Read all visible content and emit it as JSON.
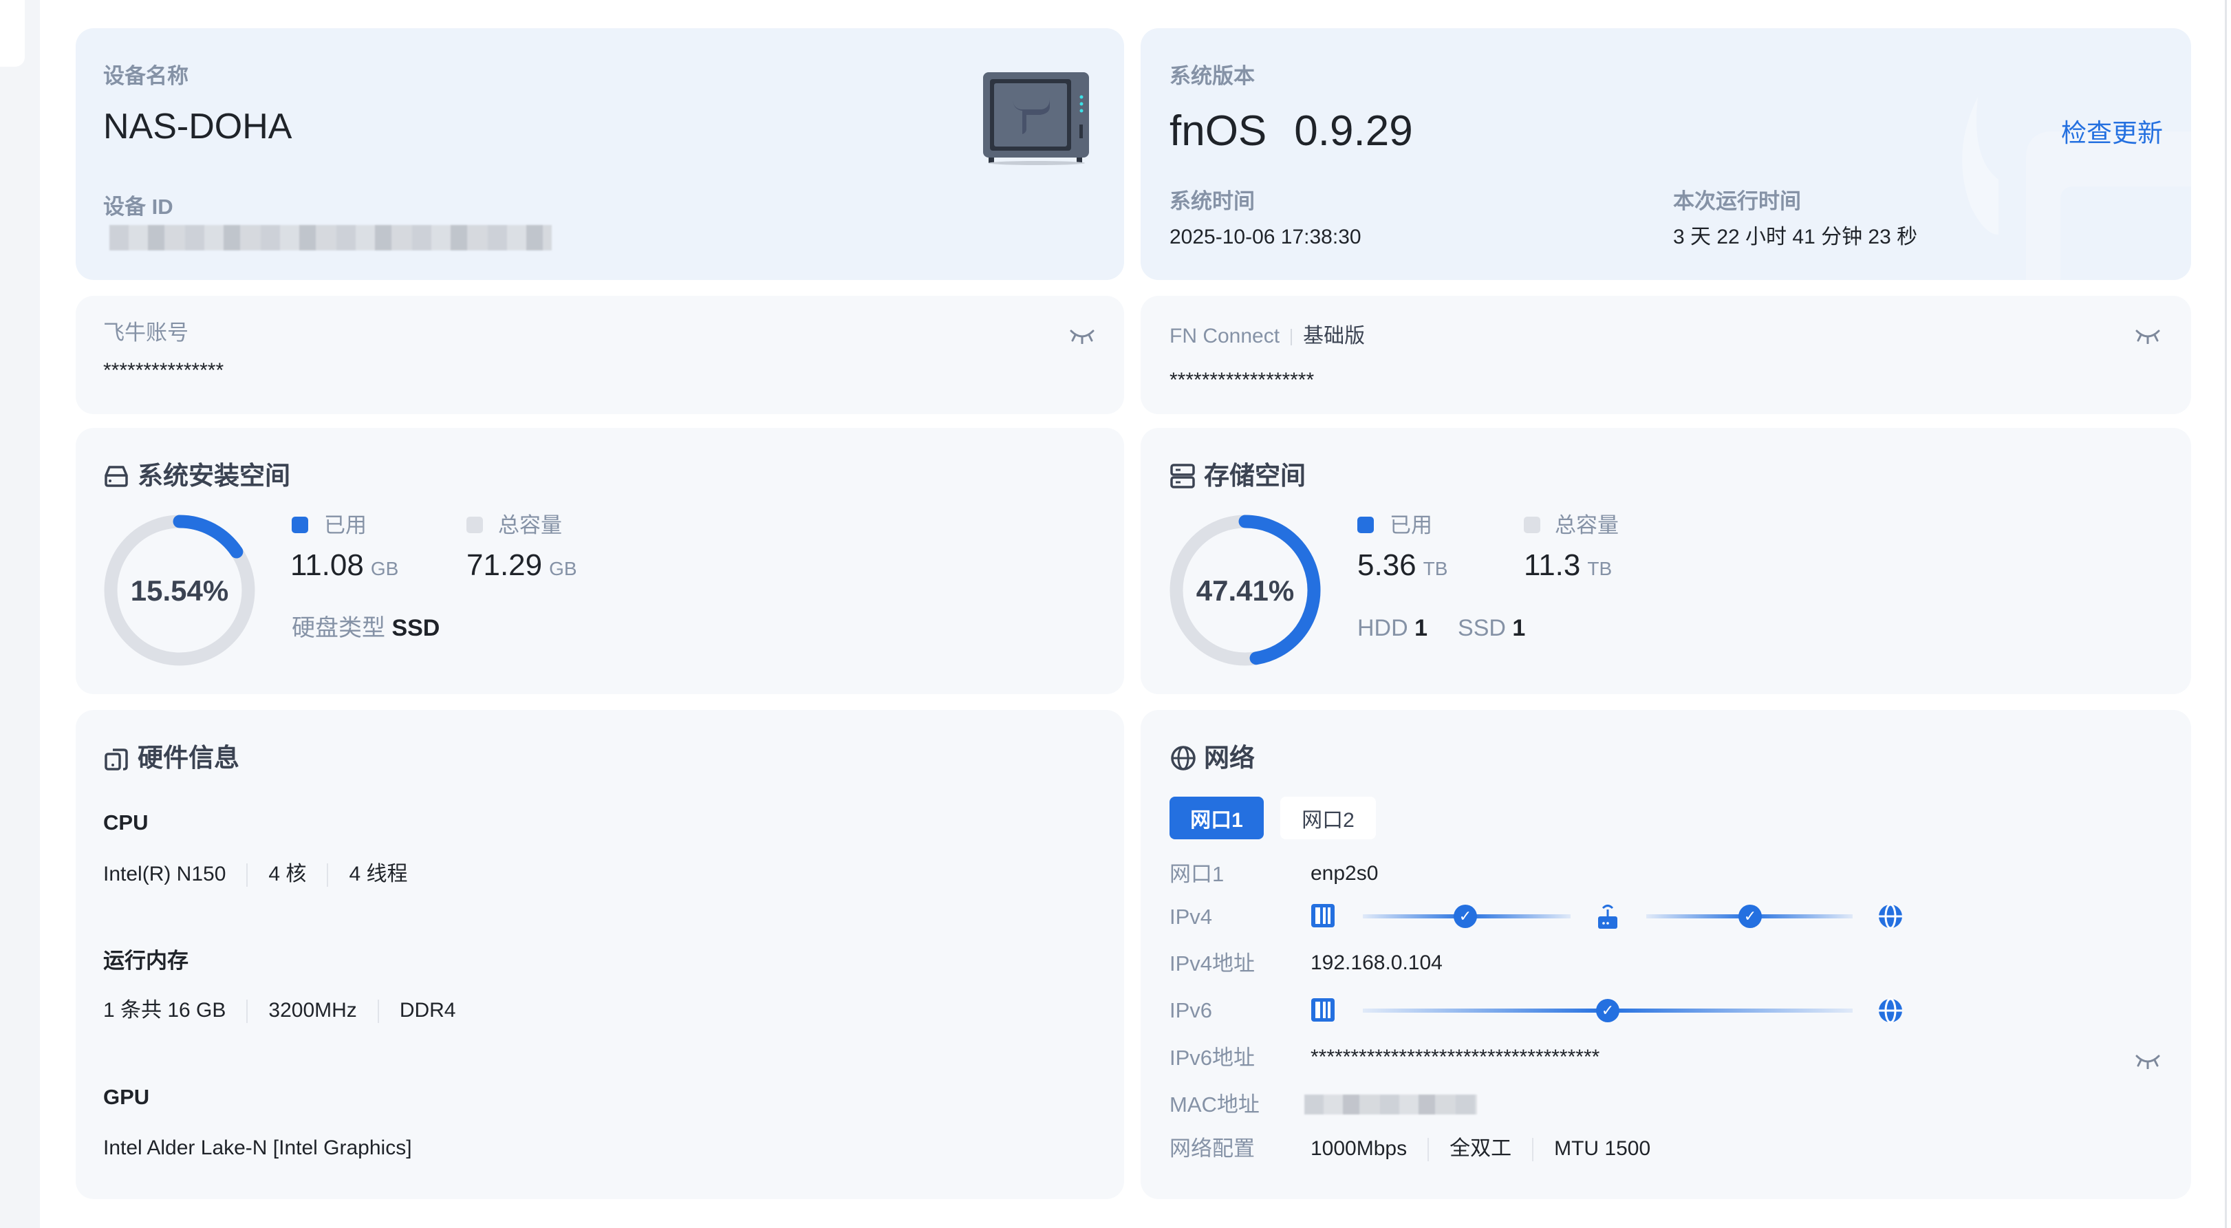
{
  "device": {
    "name_label": "设备名称",
    "name": "NAS-DOHA",
    "id_label": "设备 ID"
  },
  "system": {
    "version_label": "系统版本",
    "os": "fnOS",
    "version": "0.9.29",
    "check_update": "检查更新",
    "time_label": "系统时间",
    "time": "2025-10-06 17:38:30",
    "uptime_label": "本次运行时间",
    "uptime": "3 天 22 小时 41 分钟 23 秒"
  },
  "account": {
    "label": "飞牛账号",
    "value": "***************"
  },
  "connect": {
    "label": "FN Connect",
    "edition": "基础版",
    "value": "******************"
  },
  "sys_space": {
    "title": "系统安装空间",
    "percent_text": "15.54%",
    "percent": 15.54,
    "used_label": "已用",
    "used": "11.08",
    "used_unit": "GB",
    "total_label": "总容量",
    "total": "71.29",
    "total_unit": "GB",
    "disk_type_label": "硬盘类型",
    "disk_type": "SSD"
  },
  "storage": {
    "title": "存储空间",
    "percent_text": "47.41%",
    "percent": 47.41,
    "used_label": "已用",
    "used": "5.36",
    "used_unit": "TB",
    "total_label": "总容量",
    "total": "11.3",
    "total_unit": "TB",
    "hdd_label": "HDD",
    "hdd": "1",
    "ssd_label": "SSD",
    "ssd": "1"
  },
  "hardware": {
    "title": "硬件信息",
    "cpu_label": "CPU",
    "cpu": [
      "Intel(R) N150",
      "4 核",
      "4 线程"
    ],
    "mem_label": "运行内存",
    "mem": [
      "1 条共 16 GB",
      "3200MHz",
      "DDR4"
    ],
    "gpu_label": "GPU",
    "gpu": "Intel Alder Lake-N [Intel Graphics]"
  },
  "network": {
    "title": "网络",
    "tabs": [
      "网口1",
      "网口2"
    ],
    "active_tab": 0,
    "rows": {
      "port_label": "网口1",
      "port": "enp2s0",
      "ipv4_label": "IPv4",
      "ipv4_addr_label": "IPv4地址",
      "ipv4_addr": "192.168.0.104",
      "ipv6_label": "IPv6",
      "ipv6_addr_label": "IPv6地址",
      "ipv6_addr": "************************************",
      "mac_label": "MAC地址",
      "config_label": "网络配置",
      "config": [
        "1000Mbps",
        "全双工",
        "MTU 1500"
      ]
    }
  },
  "colors": {
    "accent": "#2470e0",
    "track": "#dde0e6",
    "card": "#f6f8fb",
    "card_highlight": "#edf3fb"
  }
}
